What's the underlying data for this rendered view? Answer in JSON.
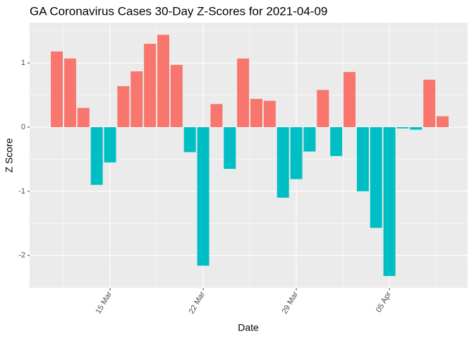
{
  "chart_data": {
    "type": "bar",
    "title": "GA Coronavirus Cases 30-Day Z-Scores for 2021-04-09",
    "x_label": "Date",
    "y_label": "Z Score",
    "categories": [
      null,
      null,
      null,
      null,
      "15 Mar",
      null,
      null,
      null,
      null,
      null,
      null,
      "22 Mar",
      null,
      null,
      null,
      null,
      null,
      null,
      "29 Mar",
      null,
      null,
      null,
      null,
      null,
      null,
      "05 Apr",
      null,
      null,
      null,
      null
    ],
    "values": [
      1.18,
      1.07,
      0.3,
      -0.9,
      -0.55,
      0.64,
      0.87,
      1.3,
      1.44,
      0.97,
      -0.39,
      -2.16,
      0.36,
      -0.65,
      1.07,
      0.44,
      0.41,
      -1.1,
      -0.81,
      -0.38,
      0.58,
      -0.45,
      0.86,
      -1.0,
      -1.57,
      -2.32,
      -0.02,
      -0.04,
      0.74,
      0.17
    ],
    "colors": {
      "positive": "#F8766D",
      "negative": "#00BFC4"
    },
    "ylim": [
      -2.51,
      1.63
    ],
    "yticks": [
      -2,
      -1,
      0,
      1
    ],
    "grid": true
  }
}
